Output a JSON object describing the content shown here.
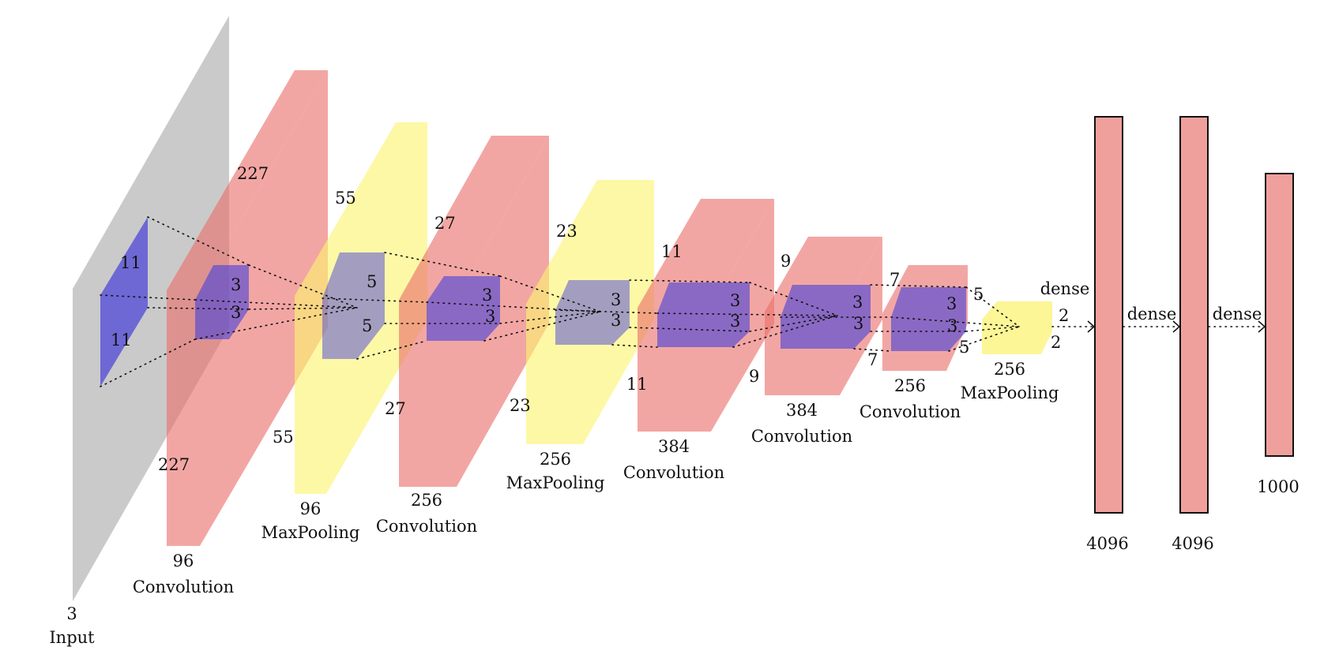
{
  "colors": {
    "input": "#b4b4b4",
    "convolution": "#ea6f6b",
    "maxpooling": "#fbf36f",
    "kernel": "#4a43d8",
    "dense": "#f0a09c"
  },
  "layers": [
    {
      "id": "input",
      "kind": "input",
      "depth_label": "3",
      "name": "Input",
      "dim_top": "",
      "dim_bottom": ""
    },
    {
      "id": "conv1",
      "kind": "convolution",
      "depth_label": "96",
      "name": "Convolution",
      "dim_top": "227",
      "dim_bottom": "227"
    },
    {
      "id": "pool1",
      "kind": "maxpooling",
      "depth_label": "96",
      "name": "MaxPooling",
      "dim_top": "55",
      "dim_bottom": "55"
    },
    {
      "id": "conv2",
      "kind": "convolution",
      "depth_label": "256",
      "name": "Convolution",
      "dim_top": "27",
      "dim_bottom": "27"
    },
    {
      "id": "pool2",
      "kind": "maxpooling",
      "depth_label": "256",
      "name": "MaxPooling",
      "dim_top": "23",
      "dim_bottom": "23"
    },
    {
      "id": "conv3",
      "kind": "convolution",
      "depth_label": "384",
      "name": "Convolution",
      "dim_top": "11",
      "dim_bottom": "11"
    },
    {
      "id": "conv4",
      "kind": "convolution",
      "depth_label": "384",
      "name": "Convolution",
      "dim_top": "9",
      "dim_bottom": "9"
    },
    {
      "id": "conv5",
      "kind": "convolution",
      "depth_label": "256",
      "name": "Convolution",
      "dim_top": "7",
      "dim_bottom": "7"
    },
    {
      "id": "pool3",
      "kind": "maxpooling",
      "depth_label": "256",
      "name": "MaxPooling",
      "dim_top": "2",
      "dim_bottom": "2"
    }
  ],
  "kernels": [
    {
      "id": "k1",
      "label_a": "11",
      "label_b": "11"
    },
    {
      "id": "k2",
      "label_a": "3",
      "label_b": "3"
    },
    {
      "id": "k3",
      "label_a": "5",
      "label_b": "5"
    },
    {
      "id": "k4",
      "label_a": "3",
      "label_b": "3"
    },
    {
      "id": "k5",
      "label_a": "3",
      "label_b": "3"
    },
    {
      "id": "k6",
      "label_a": "3",
      "label_b": "3"
    },
    {
      "id": "k7",
      "label_a": "3",
      "label_b": "3"
    },
    {
      "id": "k8",
      "label_a": "3",
      "label_b": "3"
    },
    {
      "id": "k9",
      "label_a": "5",
      "label_b": "5"
    }
  ],
  "dense_layers": [
    {
      "id": "fc1",
      "size_label": "4096",
      "arrow_label": "dense"
    },
    {
      "id": "fc2",
      "size_label": "4096",
      "arrow_label": "dense"
    },
    {
      "id": "fc3",
      "size_label": "1000",
      "arrow_label": "dense"
    }
  ]
}
